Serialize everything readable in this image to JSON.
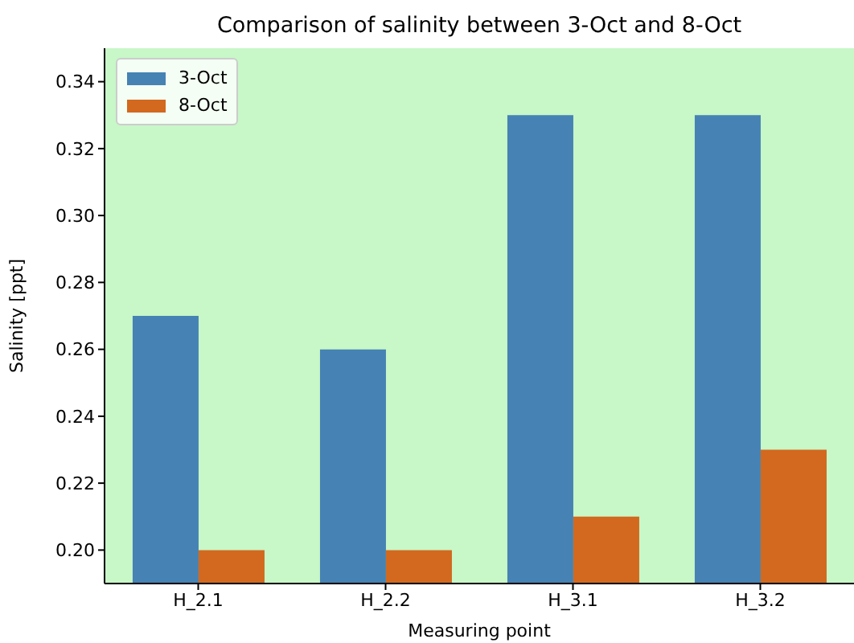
{
  "chart_data": {
    "type": "bar",
    "title": "Comparison of salinity between 3-Oct and 8-Oct",
    "xlabel": "Measuring point",
    "ylabel": "Salinity [ppt]",
    "categories": [
      "H_2.1",
      "H_2.2",
      "H_3.1",
      "H_3.2"
    ],
    "series": [
      {
        "name": "3-Oct",
        "color": "#4682b4",
        "values": [
          0.27,
          0.26,
          0.33,
          0.33
        ]
      },
      {
        "name": "8-Oct",
        "color": "#d2691e",
        "values": [
          0.2,
          0.2,
          0.21,
          0.23
        ]
      }
    ],
    "ylim": [
      0.19,
      0.35
    ],
    "yticks": [
      {
        "value": 0.2,
        "label": "0.20"
      },
      0.22,
      0.24,
      0.26,
      0.28,
      {
        "value": 0.3,
        "label": "0.30"
      },
      0.32,
      0.34
    ],
    "legend": "top left"
  }
}
